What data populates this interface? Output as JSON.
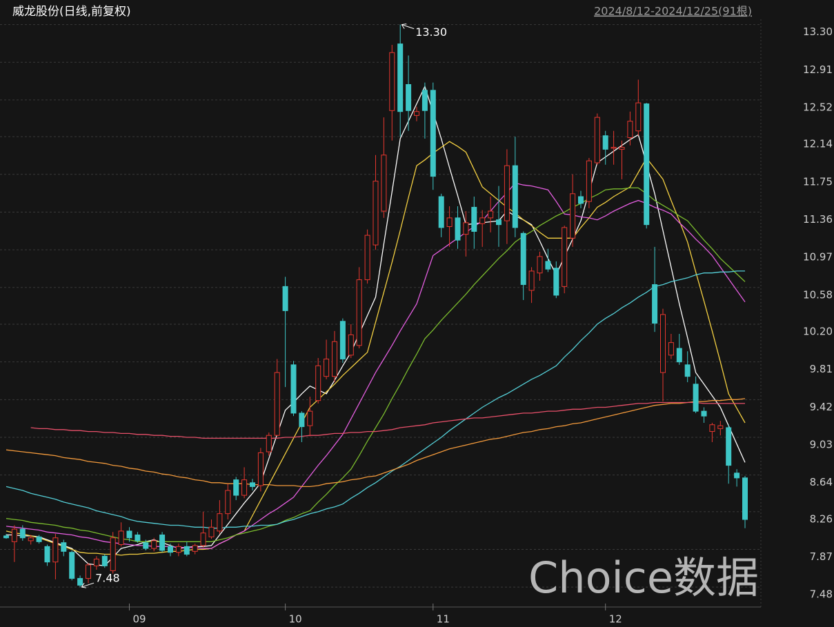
{
  "chart_data": {
    "type": "candlestick",
    "title": "威龙股份(日线,前复权)",
    "subtitle": "2024/8/12-2024/12/25(91根)",
    "watermark": "Choice数据",
    "up_color": "#e8372f",
    "down_color": "#3ec6c6",
    "grid": true,
    "ylim": [
      7.31,
      13.34
    ],
    "yticks": [
      7.48,
      7.87,
      8.26,
      8.64,
      9.03,
      9.42,
      9.81,
      {
        "value": 10.2,
        "label": "10.20"
      },
      10.58,
      10.97,
      11.36,
      11.75,
      12.14,
      12.52,
      12.91,
      {
        "value": 13.3,
        "label": "13.30"
      }
    ],
    "categories": [
      null,
      null,
      null,
      null,
      null,
      null,
      null,
      null,
      null,
      null,
      null,
      null,
      null,
      null,
      null,
      "09",
      null,
      null,
      null,
      null,
      null,
      null,
      null,
      null,
      null,
      null,
      null,
      null,
      null,
      null,
      null,
      null,
      null,
      null,
      "10",
      null,
      null,
      null,
      null,
      null,
      null,
      null,
      null,
      null,
      null,
      null,
      null,
      null,
      null,
      null,
      null,
      null,
      "11",
      null,
      null,
      null,
      null,
      null,
      null,
      null,
      null,
      null,
      null,
      null,
      null,
      null,
      null,
      null,
      null,
      null,
      null,
      null,
      null,
      "12",
      null,
      null,
      null,
      null,
      null,
      null,
      null,
      null,
      null,
      null,
      null,
      null,
      null,
      null,
      null,
      null,
      null
    ],
    "open": [
      8.01,
      7.95,
      8.08,
      7.96,
      8.0,
      7.9,
      7.74,
      7.94,
      7.84,
      7.57,
      7.57,
      7.7,
      7.8,
      7.65,
      7.92,
      8.06,
      8.02,
      7.94,
      7.88,
      8.02,
      7.9,
      7.84,
      7.9,
      7.85,
      7.91,
      8.0,
      8.06,
      8.24,
      8.59,
      8.43,
      8.56,
      8.53,
      8.88,
      9.05,
      10.59,
      9.78,
      9.28,
      9.15,
      9.41,
      9.66,
      9.66,
      10.23,
      9.88,
      9.98,
      10.66,
      11.02,
      11.37,
      12.41,
      13.1,
      12.68,
      12.36,
      12.62,
      12.62,
      11.52,
      11.21,
      11.3,
      11.13,
      11.41,
      11.24,
      11.3,
      11.28,
      11.27,
      11.84,
      11.14,
      10.55,
      10.73,
      10.85,
      10.78,
      10.59,
      11.09,
      11.52,
      11.47,
      11.87,
      12.15,
      12.02,
      12.01,
      12.13,
      12.2,
      12.48,
      10.61,
      9.7,
      9.88,
      9.95,
      9.78,
      9.58,
      9.3,
      9.09,
      9.12,
      9.13,
      8.66,
      8.61
    ],
    "high": [
      8.03,
      8.12,
      8.12,
      8.02,
      8.02,
      7.92,
      8.03,
      7.97,
      7.86,
      7.6,
      7.73,
      7.8,
      7.82,
      8.05,
      8.15,
      8.1,
      8.05,
      7.97,
      7.99,
      8.05,
      7.93,
      7.93,
      7.95,
      7.93,
      8.26,
      8.18,
      8.38,
      8.55,
      8.62,
      8.72,
      8.6,
      8.92,
      9.08,
      9.84,
      10.69,
      9.82,
      9.3,
      9.45,
      9.85,
      10.04,
      10.13,
      10.26,
      10.2,
      10.79,
      11.18,
      11.95,
      12.34,
      13.09,
      13.3,
      12.98,
      12.45,
      12.7,
      12.7,
      11.55,
      11.42,
      11.42,
      11.37,
      11.52,
      11.38,
      11.52,
      11.63,
      12.01,
      12.14,
      11.16,
      10.79,
      10.95,
      10.98,
      10.85,
      11.22,
      11.75,
      11.58,
      11.92,
      12.38,
      12.2,
      12.2,
      12.1,
      12.4,
      12.73,
      12.49,
      11.0,
      10.36,
      10.1,
      10.1,
      9.92,
      9.66,
      9.34,
      9.18,
      9.2,
      9.16,
      8.7,
      8.63
    ],
    "low": [
      7.98,
      7.74,
      7.96,
      7.92,
      7.93,
      7.7,
      7.56,
      7.8,
      7.55,
      7.48,
      7.52,
      7.66,
      7.68,
      7.62,
      7.9,
      7.95,
      7.94,
      7.86,
      7.85,
      7.84,
      7.8,
      7.8,
      7.8,
      7.82,
      7.89,
      7.98,
      8.03,
      8.18,
      8.38,
      8.4,
      8.48,
      8.47,
      8.84,
      9.04,
      9.55,
      9.25,
      8.98,
      9.04,
      9.38,
      9.63,
      9.6,
      9.8,
      9.85,
      9.95,
      10.62,
      10.97,
      11.3,
      12.1,
      12.14,
      12.2,
      12.3,
      12.12,
      11.59,
      11.1,
      11.0,
      10.98,
      10.9,
      10.98,
      11.0,
      11.15,
      11.0,
      11.03,
      11.1,
      10.45,
      10.42,
      10.65,
      10.74,
      10.47,
      10.52,
      11.0,
      11.4,
      11.4,
      11.85,
      11.85,
      11.85,
      11.7,
      12.05,
      12.15,
      11.19,
      10.12,
      9.4,
      9.84,
      9.78,
      9.6,
      9.28,
      9.18,
      8.98,
      9.05,
      8.55,
      8.52,
      8.09
    ],
    "close": [
      7.99,
      8.08,
      7.99,
      7.99,
      7.95,
      7.74,
      7.99,
      7.85,
      7.57,
      7.5,
      7.71,
      7.77,
      7.7,
      7.99,
      8.06,
      7.99,
      7.96,
      7.88,
      7.96,
      7.86,
      7.84,
      7.9,
      7.82,
      7.91,
      8.04,
      8.1,
      8.24,
      8.48,
      8.43,
      8.59,
      8.52,
      8.87,
      9.05,
      9.7,
      10.34,
      9.28,
      9.14,
      9.3,
      9.77,
      9.84,
      10.02,
      9.84,
      10.09,
      10.66,
      11.12,
      11.68,
      11.95,
      13.01,
      12.4,
      12.41,
      12.4,
      12.41,
      11.73,
      11.2,
      11.3,
      11.07,
      11.25,
      11.16,
      11.3,
      11.37,
      11.23,
      11.84,
      11.2,
      10.61,
      10.75,
      10.9,
      10.77,
      10.5,
      11.2,
      11.55,
      11.45,
      11.89,
      12.34,
      12.01,
      12.03,
      12.03,
      12.3,
      12.49,
      11.23,
      10.21,
      10.3,
      10.01,
      9.81,
      9.66,
      9.3,
      9.25,
      9.16,
      9.15,
      8.74,
      8.61,
      8.18
    ],
    "lines": [
      {
        "color": "#ffffff",
        "values": [
          8.02,
          8.02,
          8.01,
          8.01,
          8.0,
          7.97,
          7.94,
          7.91,
          7.88,
          7.8,
          7.72,
          7.71,
          7.7,
          7.79,
          7.88,
          7.9,
          7.92,
          7.95,
          7.97,
          7.94,
          7.91,
          7.88,
          7.89,
          7.9,
          7.9,
          7.91,
          8.02,
          8.13,
          8.24,
          8.35,
          8.45,
          8.56,
          8.81,
          9.06,
          9.31,
          9.39,
          9.48,
          9.56,
          9.52,
          9.48,
          9.62,
          9.77,
          9.91,
          10.1,
          10.29,
          10.48,
          11.03,
          11.57,
          12.12,
          12.3,
          12.48,
          12.66,
          12.39,
          12.12,
          11.82,
          11.53,
          11.23,
          11.24,
          11.25,
          11.26,
          11.27,
          11.37,
          11.32,
          11.28,
          11.23,
          11.06,
          10.88,
          10.71,
          10.9,
          11.08,
          11.27,
          11.57,
          11.87,
          11.93,
          11.99,
          12.05,
          12.11,
          12.16,
          11.86,
          11.55,
          11.17,
          10.79,
          10.41,
          10.06,
          9.7,
          9.58,
          9.46,
          9.34,
          9.15,
          8.96,
          8.77
        ]
      },
      {
        "color": "#f5d142",
        "values": [
          8.06,
          8.04,
          8.03,
          8.01,
          7.99,
          7.96,
          7.93,
          7.9,
          7.87,
          7.84,
          7.83,
          7.83,
          7.82,
          7.82,
          7.81,
          7.82,
          7.82,
          7.83,
          7.83,
          7.84,
          7.85,
          7.85,
          7.86,
          7.87,
          7.87,
          7.88,
          7.93,
          7.97,
          8.02,
          8.06,
          8.22,
          8.38,
          8.54,
          8.7,
          8.86,
          9.02,
          9.18,
          9.34,
          9.42,
          9.5,
          9.58,
          9.67,
          9.75,
          9.83,
          9.91,
          10.22,
          10.53,
          10.84,
          11.17,
          11.51,
          11.84,
          11.9,
          11.97,
          12.03,
          12.09,
          12.04,
          11.98,
          11.8,
          11.62,
          11.55,
          11.48,
          11.41,
          11.35,
          11.28,
          11.22,
          11.15,
          11.09,
          11.09,
          11.09,
          11.09,
          11.2,
          11.3,
          11.41,
          11.46,
          11.52,
          11.57,
          11.62,
          11.77,
          11.92,
          11.81,
          11.7,
          11.48,
          11.27,
          11.05,
          10.74,
          10.44,
          10.13,
          9.81,
          9.48,
          9.33,
          9.18
        ]
      },
      {
        "color": "#e45ee0",
        "values": [
          8.11,
          8.1,
          8.09,
          8.08,
          8.07,
          8.05,
          8.04,
          8.03,
          8.02,
          8.0,
          7.99,
          7.97,
          7.95,
          7.94,
          7.93,
          7.92,
          7.91,
          7.91,
          7.9,
          7.9,
          7.9,
          7.89,
          7.89,
          7.89,
          7.88,
          7.88,
          7.93,
          7.97,
          8.02,
          8.06,
          8.12,
          8.18,
          8.24,
          8.29,
          8.35,
          8.41,
          8.52,
          8.63,
          8.74,
          8.84,
          8.95,
          9.06,
          9.22,
          9.38,
          9.54,
          9.7,
          9.84,
          9.98,
          10.13,
          10.27,
          10.41,
          10.66,
          10.91,
          10.97,
          11.03,
          11.09,
          11.15,
          11.21,
          11.27,
          11.37,
          11.47,
          11.56,
          11.66,
          11.64,
          11.63,
          11.61,
          11.59,
          11.47,
          11.34,
          11.33,
          11.31,
          11.3,
          11.28,
          11.32,
          11.37,
          11.41,
          11.45,
          11.48,
          11.45,
          11.41,
          11.38,
          11.34,
          11.25,
          11.17,
          11.08,
          11.0,
          10.91,
          10.79,
          10.67,
          10.55,
          10.43
        ]
      },
      {
        "color": "#7cbd2e",
        "values": [
          8.19,
          8.18,
          8.17,
          8.15,
          8.14,
          8.13,
          8.12,
          8.1,
          8.09,
          8.07,
          8.06,
          8.04,
          8.02,
          8.0,
          7.98,
          7.97,
          7.95,
          7.95,
          7.95,
          7.95,
          7.95,
          7.95,
          7.95,
          7.95,
          7.95,
          7.95,
          7.97,
          7.99,
          8.02,
          8.04,
          8.06,
          8.08,
          8.11,
          8.13,
          8.17,
          8.2,
          8.24,
          8.27,
          8.36,
          8.44,
          8.53,
          8.61,
          8.7,
          8.84,
          8.99,
          9.13,
          9.27,
          9.43,
          9.58,
          9.74,
          9.89,
          10.05,
          10.14,
          10.24,
          10.33,
          10.42,
          10.51,
          10.61,
          10.7,
          10.79,
          10.88,
          10.96,
          11.05,
          11.11,
          11.16,
          11.22,
          11.27,
          11.32,
          11.36,
          11.41,
          11.45,
          11.5,
          11.54,
          11.59,
          11.6,
          11.6,
          11.61,
          11.61,
          11.55,
          11.48,
          11.43,
          11.38,
          11.32,
          11.27,
          11.17,
          11.07,
          10.98,
          10.88,
          10.8,
          10.72,
          10.64
        ]
      },
      {
        "color": "#55d0d8",
        "values": [
          8.52,
          8.5,
          8.48,
          8.45,
          8.43,
          8.41,
          8.39,
          8.36,
          8.34,
          8.32,
          8.3,
          8.27,
          8.25,
          8.23,
          8.21,
          8.18,
          8.16,
          8.15,
          8.14,
          8.13,
          8.12,
          8.12,
          8.11,
          8.1,
          8.1,
          8.09,
          8.09,
          8.1,
          8.1,
          8.11,
          8.11,
          8.12,
          8.12,
          8.13,
          8.16,
          8.18,
          8.21,
          8.24,
          8.26,
          8.29,
          8.31,
          8.34,
          8.4,
          8.45,
          8.51,
          8.56,
          8.62,
          8.68,
          8.73,
          8.79,
          8.85,
          8.91,
          8.97,
          9.03,
          9.1,
          9.16,
          9.22,
          9.28,
          9.34,
          9.39,
          9.44,
          9.48,
          9.53,
          9.58,
          9.63,
          9.67,
          9.72,
          9.77,
          9.86,
          9.94,
          10.03,
          10.11,
          10.2,
          10.26,
          10.31,
          10.37,
          10.42,
          10.48,
          10.53,
          10.59,
          10.61,
          10.64,
          10.66,
          10.68,
          10.71,
          10.73,
          10.73,
          10.74,
          10.74,
          10.75,
          10.75
        ]
      },
      {
        "color": "#f39a3c",
        "values": [
          8.9,
          8.89,
          8.88,
          8.87,
          8.86,
          8.85,
          8.84,
          8.82,
          8.81,
          8.8,
          8.78,
          8.77,
          8.76,
          8.74,
          8.73,
          8.71,
          8.7,
          8.68,
          8.67,
          8.65,
          8.64,
          8.62,
          8.61,
          8.59,
          8.58,
          8.56,
          8.56,
          8.55,
          8.55,
          8.55,
          8.54,
          8.54,
          8.54,
          8.53,
          8.53,
          8.53,
          8.52,
          8.52,
          8.53,
          8.55,
          8.56,
          8.57,
          8.59,
          8.6,
          8.62,
          8.63,
          8.66,
          8.69,
          8.72,
          8.75,
          8.79,
          8.82,
          8.85,
          8.88,
          8.91,
          8.93,
          8.95,
          8.97,
          8.99,
          9.01,
          9.02,
          9.04,
          9.06,
          9.08,
          9.09,
          9.11,
          9.12,
          9.14,
          9.15,
          9.17,
          9.18,
          9.2,
          9.22,
          9.24,
          9.26,
          9.28,
          9.3,
          9.32,
          9.34,
          9.36,
          9.37,
          9.38,
          9.38,
          9.39,
          9.4,
          9.4,
          9.41,
          9.41,
          9.42,
          9.42,
          9.43
        ]
      },
      {
        "color": "#e8506a",
        "values": [
          null,
          null,
          null,
          9.13,
          9.12,
          9.12,
          9.11,
          9.11,
          9.1,
          9.1,
          9.09,
          9.09,
          9.08,
          9.08,
          9.07,
          9.07,
          9.06,
          9.06,
          9.05,
          9.05,
          9.04,
          9.04,
          9.03,
          9.03,
          9.02,
          9.02,
          9.02,
          9.02,
          9.02,
          9.02,
          9.02,
          9.02,
          9.02,
          9.02,
          9.03,
          9.03,
          9.04,
          9.05,
          9.05,
          9.06,
          9.07,
          9.07,
          9.08,
          9.08,
          9.09,
          9.09,
          9.1,
          9.11,
          9.13,
          9.14,
          9.15,
          9.16,
          9.18,
          9.19,
          9.2,
          9.21,
          9.22,
          9.23,
          9.23,
          9.24,
          9.25,
          9.26,
          9.27,
          9.28,
          9.28,
          9.29,
          9.3,
          9.3,
          9.31,
          9.32,
          9.32,
          9.33,
          9.34,
          9.34,
          9.35,
          9.36,
          9.37,
          9.38,
          9.38,
          9.39,
          9.39,
          9.39,
          9.39,
          9.39,
          9.39,
          9.38,
          9.38,
          9.38,
          9.38,
          9.38,
          9.38
        ]
      }
    ],
    "annotations": [
      {
        "index": 48,
        "value": 13.3,
        "label": "13.30"
      },
      {
        "index": 9,
        "value": 7.48,
        "label": "7.48"
      }
    ]
  }
}
